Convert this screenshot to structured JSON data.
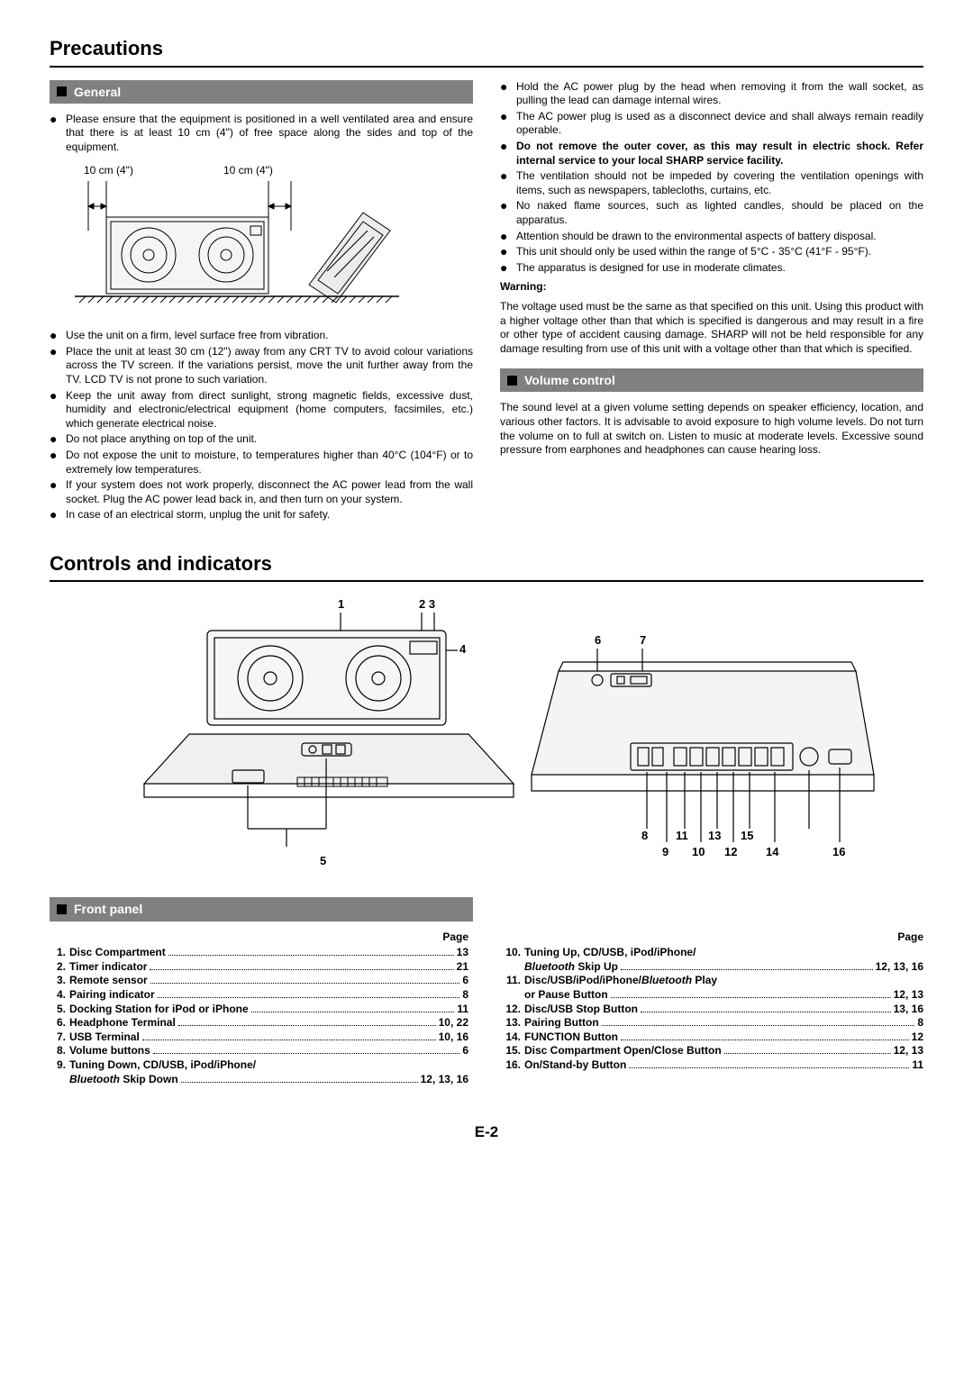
{
  "precautions": {
    "title": "Precautions",
    "general": {
      "heading": "General",
      "label_a": "10 cm (4\")",
      "label_b": "10 cm (4\")",
      "items_top": [
        "Please ensure that the equipment is positioned in a well ventilated area and ensure that there is at least 10 cm (4\") of free space along the sides and top of the equipment."
      ],
      "items_left": [
        "Use the unit on a firm, level surface free from vibration.",
        "Place the unit at least 30 cm (12\") away from any CRT TV to avoid colour variations across the TV screen. If the variations persist, move the unit further away from the TV. LCD TV is not prone to such variation.",
        "Keep the unit away from direct sunlight, strong magnetic fields, excessive dust, humidity and electronic/electrical equipment (home computers, facsimiles, etc.) which generate electrical noise.",
        "Do not place anything on top of the unit.",
        "Do not expose the unit to moisture, to temperatures higher than 40°C (104°F) or to extremely low temperatures.",
        "If your system does not work properly, disconnect the AC power lead from the wall socket. Plug the AC power lead back in, and then turn on your system.",
        "In case of an electrical storm, unplug the unit for safety."
      ],
      "items_right_pre": [
        "Hold the AC power plug by the head when removing it from the wall socket, as pulling the lead can damage internal wires.",
        "The AC power plug is used as a disconnect device and shall always remain readily operable."
      ],
      "bold_item": "Do not remove the outer cover, as this may result in electric shock. Refer internal service to your local SHARP service facility.",
      "items_right_post": [
        "The ventilation should not be impeded by covering the ventilation openings with items, such as newspapers, tablecloths, curtains, etc.",
        "No naked flame sources, such as lighted candles, should be placed on the apparatus.",
        "Attention should be drawn to the environmental aspects of battery disposal.",
        "This unit should only be used within the range of 5°C - 35°C (41°F - 95°F).",
        "The apparatus is designed for use in moderate climates."
      ],
      "warning_label": "Warning:",
      "warning_text": "The voltage used must be the same as that specified on this unit. Using this product with a higher voltage other than that which is specified is dangerous and may result in a fire or other type of accident causing damage. SHARP will not be held responsible for any damage resulting from use of this unit with a voltage other than that which is specified."
    },
    "volume": {
      "heading": "Volume control",
      "text": "The sound level at a given volume setting depends on speaker efficiency, location, and various other factors. It is advisable to avoid exposure to high volume levels. Do not turn the volume on to full at switch on. Listen to music at moderate levels. Excessive sound pressure from earphones and headphones can cause hearing loss."
    }
  },
  "controls": {
    "title": "Controls and indicators",
    "front_panel": "Front panel",
    "page_label": "Page",
    "callouts": {
      "c1": "1",
      "c2": "2",
      "c3": "3",
      "c4": "4",
      "c5": "5",
      "c6": "6",
      "c7": "7",
      "c8": "8",
      "c9": "9",
      "c10": "10",
      "c11": "11",
      "c12": "12",
      "c13": "13",
      "c14": "14",
      "c15": "15",
      "c16": "16"
    },
    "toc_left": [
      {
        "n": "1.",
        "label": "Disc Compartment",
        "pg": "13"
      },
      {
        "n": "2.",
        "label": "Timer indicator",
        "pg": "21"
      },
      {
        "n": "3.",
        "label": "Remote sensor",
        "pg": "6"
      },
      {
        "n": "4.",
        "label": "Pairing indicator",
        "pg": "8"
      },
      {
        "n": "5.",
        "label": "Docking Station for iPod or iPhone",
        "pg": "11"
      },
      {
        "n": "6.",
        "label": "Headphone Terminal",
        "pg": "10, 22"
      },
      {
        "n": "7.",
        "label": "USB Terminal",
        "pg": "10, 16"
      },
      {
        "n": "8.",
        "label": "Volume buttons",
        "pg": "6"
      },
      {
        "n": "9.",
        "label": "Tuning Down, CD/USB, iPod/iPhone/",
        "pg": ""
      }
    ],
    "toc_left_sub": {
      "prefix": "Bluetooth",
      "suffix": " Skip Down",
      "pg": "12, 13, 16"
    },
    "toc_right": [
      {
        "n": "10.",
        "label": "Tuning Up, CD/USB, iPod/iPhone/",
        "pg": ""
      }
    ],
    "toc_right_sub1": {
      "prefix": "Bluetooth",
      "suffix": " Skip Up",
      "pg": "12, 13, 16"
    },
    "toc_right2": [
      {
        "n": "11.",
        "label_pre": "Disc/USB/iPod/iPhone/",
        "label_i": "Bluetooth",
        "label_post": " Play",
        "pg": ""
      }
    ],
    "toc_right_sub2": {
      "label": "or Pause Button",
      "pg": "12, 13"
    },
    "toc_right3": [
      {
        "n": "12.",
        "label": "Disc/USB Stop Button",
        "pg": "13, 16"
      },
      {
        "n": "13.",
        "label": "Pairing Button",
        "pg": "8"
      },
      {
        "n": "14.",
        "label": "FUNCTION Button",
        "pg": "12"
      },
      {
        "n": "15.",
        "label": "Disc Compartment Open/Close Button",
        "pg": "12, 13"
      },
      {
        "n": "16.",
        "label": "On/Stand-by Button",
        "pg": "11"
      }
    ]
  },
  "page_number": "E-2"
}
